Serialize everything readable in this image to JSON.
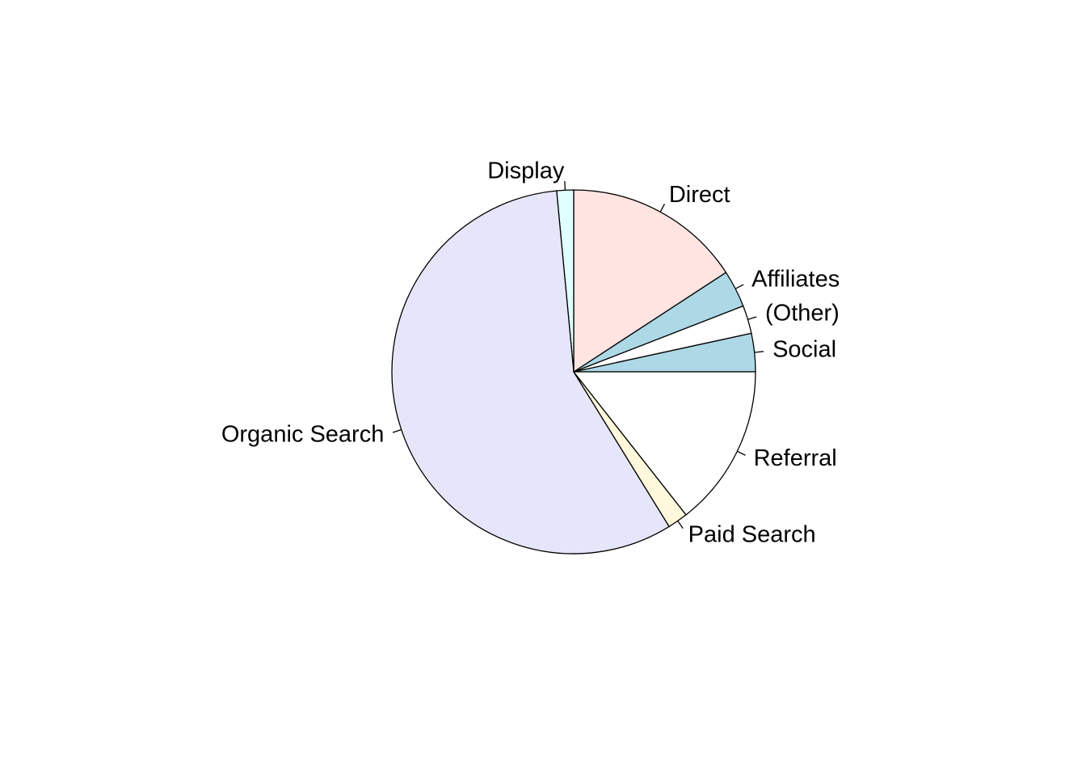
{
  "chart_data": {
    "type": "pie",
    "title": "",
    "start_angle_deg": 0,
    "direction": "counterclockwise",
    "slices": [
      {
        "label": "Social",
        "value": 3.4,
        "color": "#add8e6"
      },
      {
        "label": "(Other)",
        "value": 2.5,
        "color": "#ffffff"
      },
      {
        "label": "Affiliates",
        "value": 3.3,
        "color": "#add8e6"
      },
      {
        "label": "Direct",
        "value": 15.8,
        "color": "#ffe4e1"
      },
      {
        "label": "Display",
        "value": 1.5,
        "color": "#e0ffff"
      },
      {
        "label": "Organic Search",
        "value": 57.3,
        "color": "#e6e6fa"
      },
      {
        "label": "Paid Search",
        "value": 1.8,
        "color": "#fff8dc"
      },
      {
        "label": "Referral",
        "value": 14.4,
        "color": "#ffffff"
      }
    ]
  }
}
